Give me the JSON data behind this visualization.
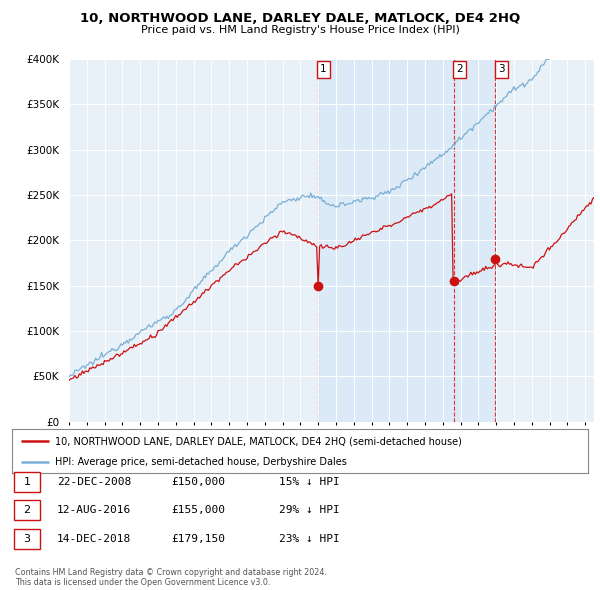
{
  "title": "10, NORTHWOOD LANE, DARLEY DALE, MATLOCK, DE4 2HQ",
  "subtitle": "Price paid vs. HM Land Registry's House Price Index (HPI)",
  "legend_line1": "10, NORTHWOOD LANE, DARLEY DALE, MATLOCK, DE4 2HQ (semi-detached house)",
  "legend_line2": "HPI: Average price, semi-detached house, Derbyshire Dales",
  "copyright": "Contains HM Land Registry data © Crown copyright and database right 2024.\nThis data is licensed under the Open Government Licence v3.0.",
  "transactions": [
    {
      "num": 1,
      "date": "22-DEC-2008",
      "price": "£150,000",
      "pct": "15% ↓ HPI",
      "year": 2008.97
    },
    {
      "num": 2,
      "date": "12-AUG-2016",
      "price": "£155,000",
      "pct": "29% ↓ HPI",
      "year": 2016.62
    },
    {
      "num": 3,
      "date": "14-DEC-2018",
      "price": "£179,150",
      "pct": "23% ↓ HPI",
      "year": 2018.96
    }
  ],
  "sale_prices": [
    150000,
    155000,
    179150
  ],
  "sale_years": [
    2008.97,
    2016.62,
    2018.96
  ],
  "hpi_color": "#7bafd4",
  "price_color": "#cc1111",
  "shade_color": "#ddeeff",
  "dashed_color": "#dd3333",
  "background_chart": "#e8f0f8",
  "background_fig": "#ffffff",
  "ylim": [
    0,
    400000
  ],
  "xlim_start": 1995.0,
  "xlim_end": 2024.5,
  "yticks": [
    0,
    50000,
    100000,
    150000,
    200000,
    250000,
    300000,
    350000,
    400000
  ]
}
